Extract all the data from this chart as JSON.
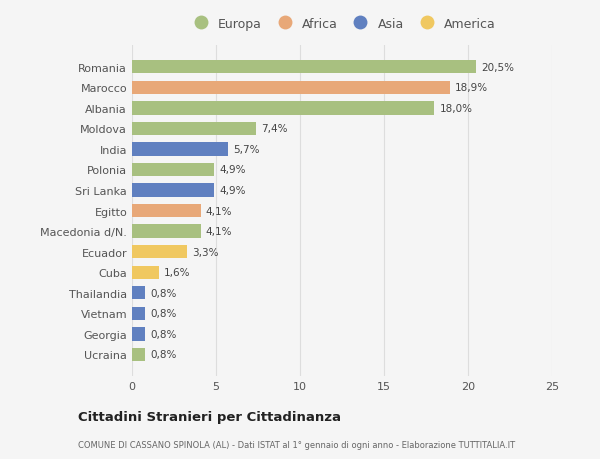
{
  "countries": [
    "Romania",
    "Marocco",
    "Albania",
    "Moldova",
    "India",
    "Polonia",
    "Sri Lanka",
    "Egitto",
    "Macedonia d/N.",
    "Ecuador",
    "Cuba",
    "Thailandia",
    "Vietnam",
    "Georgia",
    "Ucraina"
  ],
  "values": [
    20.5,
    18.9,
    18.0,
    7.4,
    5.7,
    4.9,
    4.9,
    4.1,
    4.1,
    3.3,
    1.6,
    0.8,
    0.8,
    0.8,
    0.8
  ],
  "labels": [
    "20,5%",
    "18,9%",
    "18,0%",
    "7,4%",
    "5,7%",
    "4,9%",
    "4,9%",
    "4,1%",
    "4,1%",
    "3,3%",
    "1,6%",
    "0,8%",
    "0,8%",
    "0,8%",
    "0,8%"
  ],
  "regions": [
    "Europa",
    "Africa",
    "Europa",
    "Europa",
    "Asia",
    "Europa",
    "Asia",
    "Africa",
    "Europa",
    "America",
    "America",
    "Asia",
    "Asia",
    "Asia",
    "Europa"
  ],
  "colors": {
    "Europa": "#a8c080",
    "Africa": "#e8a878",
    "Asia": "#6080c0",
    "America": "#f0c860"
  },
  "legend_order": [
    "Europa",
    "Africa",
    "Asia",
    "America"
  ],
  "xlim": [
    0,
    25
  ],
  "xticks": [
    0,
    5,
    10,
    15,
    20,
    25
  ],
  "title": "Cittadini Stranieri per Cittadinanza",
  "subtitle": "COMUNE DI CASSANO SPINOLA (AL) - Dati ISTAT al 1° gennaio di ogni anno - Elaborazione TUTTITALIA.IT",
  "background_color": "#f5f5f5",
  "bar_height": 0.65,
  "grid_color": "#dddddd"
}
